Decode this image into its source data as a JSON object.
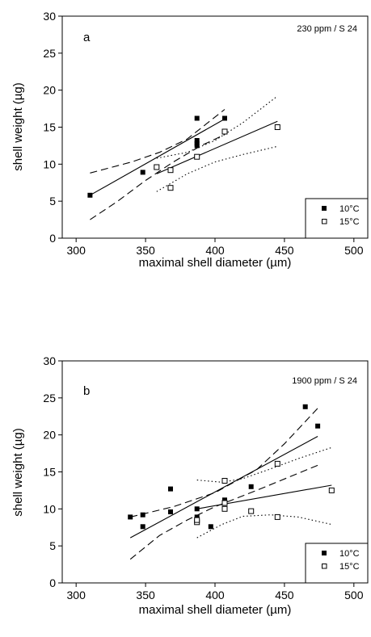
{
  "chart_data": [
    {
      "type": "scatter",
      "panel_label": "a",
      "condition_label": "230 ppm /  S 24",
      "xlabel": "maximal shell diameter (µm)",
      "ylabel": "shell weight (µg)",
      "xlim": [
        290,
        510
      ],
      "ylim": [
        0,
        30
      ],
      "xticks": [
        300,
        350,
        400,
        450,
        500
      ],
      "yticks": [
        0,
        5,
        10,
        15,
        20,
        25,
        30
      ],
      "grid": false,
      "legend_position": "bottom-right",
      "series": [
        {
          "name": "10°C",
          "marker": "filled-square",
          "points": [
            [
              310,
              5.8
            ],
            [
              348,
              8.9
            ],
            [
              387,
              16.2
            ],
            [
              387,
              13.2
            ],
            [
              387,
              12.8
            ],
            [
              387,
              12.5
            ],
            [
              407,
              16.2
            ]
          ],
          "fit": [
            [
              310,
              5.8
            ],
            [
              407,
              16.1
            ]
          ],
          "ci_style": "dashed",
          "ci_upper": [
            [
              310,
              8.8
            ],
            [
              340,
              10.3
            ],
            [
              360,
              11.6
            ],
            [
              380,
              13.4
            ],
            [
              407,
              17.4
            ]
          ],
          "ci_lower": [
            [
              310,
              2.5
            ],
            [
              330,
              5.0
            ],
            [
              350,
              7.8
            ],
            [
              370,
              10.3
            ],
            [
              390,
              12.5
            ],
            [
              407,
              14.0
            ]
          ]
        },
        {
          "name": "15°C",
          "marker": "open-square",
          "points": [
            [
              358,
              9.6
            ],
            [
              368,
              9.2
            ],
            [
              368,
              6.8
            ],
            [
              387,
              11.0
            ],
            [
              407,
              14.4
            ],
            [
              445,
              15.0
            ]
          ],
          "fit": [
            [
              358,
              8.7
            ],
            [
              445,
              15.8
            ]
          ],
          "ci_style": "dotted",
          "ci_upper": [
            [
              358,
              10.8
            ],
            [
              380,
              11.6
            ],
            [
              400,
              13.2
            ],
            [
              420,
              15.6
            ],
            [
              445,
              19.2
            ]
          ],
          "ci_lower": [
            [
              358,
              6.3
            ],
            [
              380,
              8.7
            ],
            [
              400,
              10.3
            ],
            [
              420,
              11.3
            ],
            [
              445,
              12.4
            ]
          ]
        }
      ]
    },
    {
      "type": "scatter",
      "panel_label": "b",
      "condition_label": "1900 ppm /  S 24",
      "xlabel": "maximal shell diameter (µm)",
      "ylabel": "shell weight (µg)",
      "xlim": [
        290,
        510
      ],
      "ylim": [
        0,
        30
      ],
      "xticks": [
        300,
        350,
        400,
        450,
        500
      ],
      "yticks": [
        0,
        5,
        10,
        15,
        20,
        25,
        30
      ],
      "grid": false,
      "legend_position": "bottom-right",
      "series": [
        {
          "name": "10°C",
          "marker": "filled-square",
          "points": [
            [
              339,
              8.9
            ],
            [
              348,
              9.2
            ],
            [
              348,
              7.6
            ],
            [
              368,
              12.7
            ],
            [
              368,
              9.6
            ],
            [
              387,
              10.0
            ],
            [
              387,
              8.9
            ],
            [
              397,
              7.6
            ],
            [
              407,
              11.2
            ],
            [
              426,
              13.0
            ],
            [
              465,
              23.8
            ],
            [
              474,
              21.2
            ]
          ],
          "fit": [
            [
              339,
              6.1
            ],
            [
              474,
              19.8
            ]
          ],
          "ci_style": "dashed",
          "ci_upper": [
            [
              339,
              8.9
            ],
            [
              370,
              10.3
            ],
            [
              400,
              12.2
            ],
            [
              430,
              15.3
            ],
            [
              450,
              18.8
            ],
            [
              474,
              23.6
            ]
          ],
          "ci_lower": [
            [
              339,
              3.2
            ],
            [
              360,
              6.4
            ],
            [
              380,
              8.5
            ],
            [
              400,
              10.3
            ],
            [
              430,
              12.5
            ],
            [
              474,
              15.9
            ]
          ]
        },
        {
          "name": "15°C",
          "marker": "open-square",
          "points": [
            [
              387,
              8.2
            ],
            [
              387,
              8.5
            ],
            [
              407,
              13.8
            ],
            [
              407,
              10.8
            ],
            [
              407,
              10.0
            ],
            [
              426,
              9.7
            ],
            [
              445,
              16.1
            ],
            [
              445,
              8.9
            ],
            [
              484,
              12.5
            ]
          ],
          "fit": [
            [
              387,
              10.0
            ],
            [
              484,
              13.2
            ]
          ],
          "ci_style": "dotted",
          "ci_upper": [
            [
              387,
              13.9
            ],
            [
              405,
              13.6
            ],
            [
              420,
              14.1
            ],
            [
              440,
              15.4
            ],
            [
              460,
              16.8
            ],
            [
              484,
              18.3
            ]
          ],
          "ci_lower": [
            [
              387,
              6.1
            ],
            [
              405,
              7.9
            ],
            [
              420,
              9.0
            ],
            [
              440,
              9.2
            ],
            [
              460,
              8.9
            ],
            [
              484,
              7.9
            ]
          ]
        }
      ]
    }
  ]
}
